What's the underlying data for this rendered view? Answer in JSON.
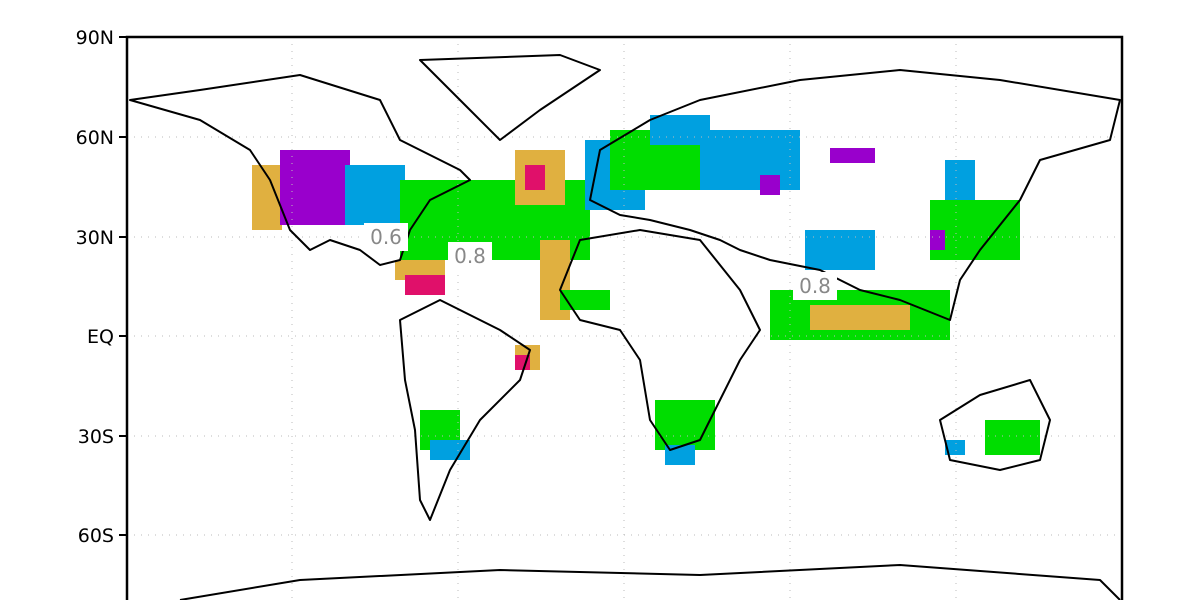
{
  "map": {
    "lat_labels": [
      "90N",
      "60N",
      "30N",
      "EQ",
      "30S",
      "60S"
    ],
    "contour_labels": [
      "0.6",
      "0.8",
      "0.8"
    ]
  }
}
